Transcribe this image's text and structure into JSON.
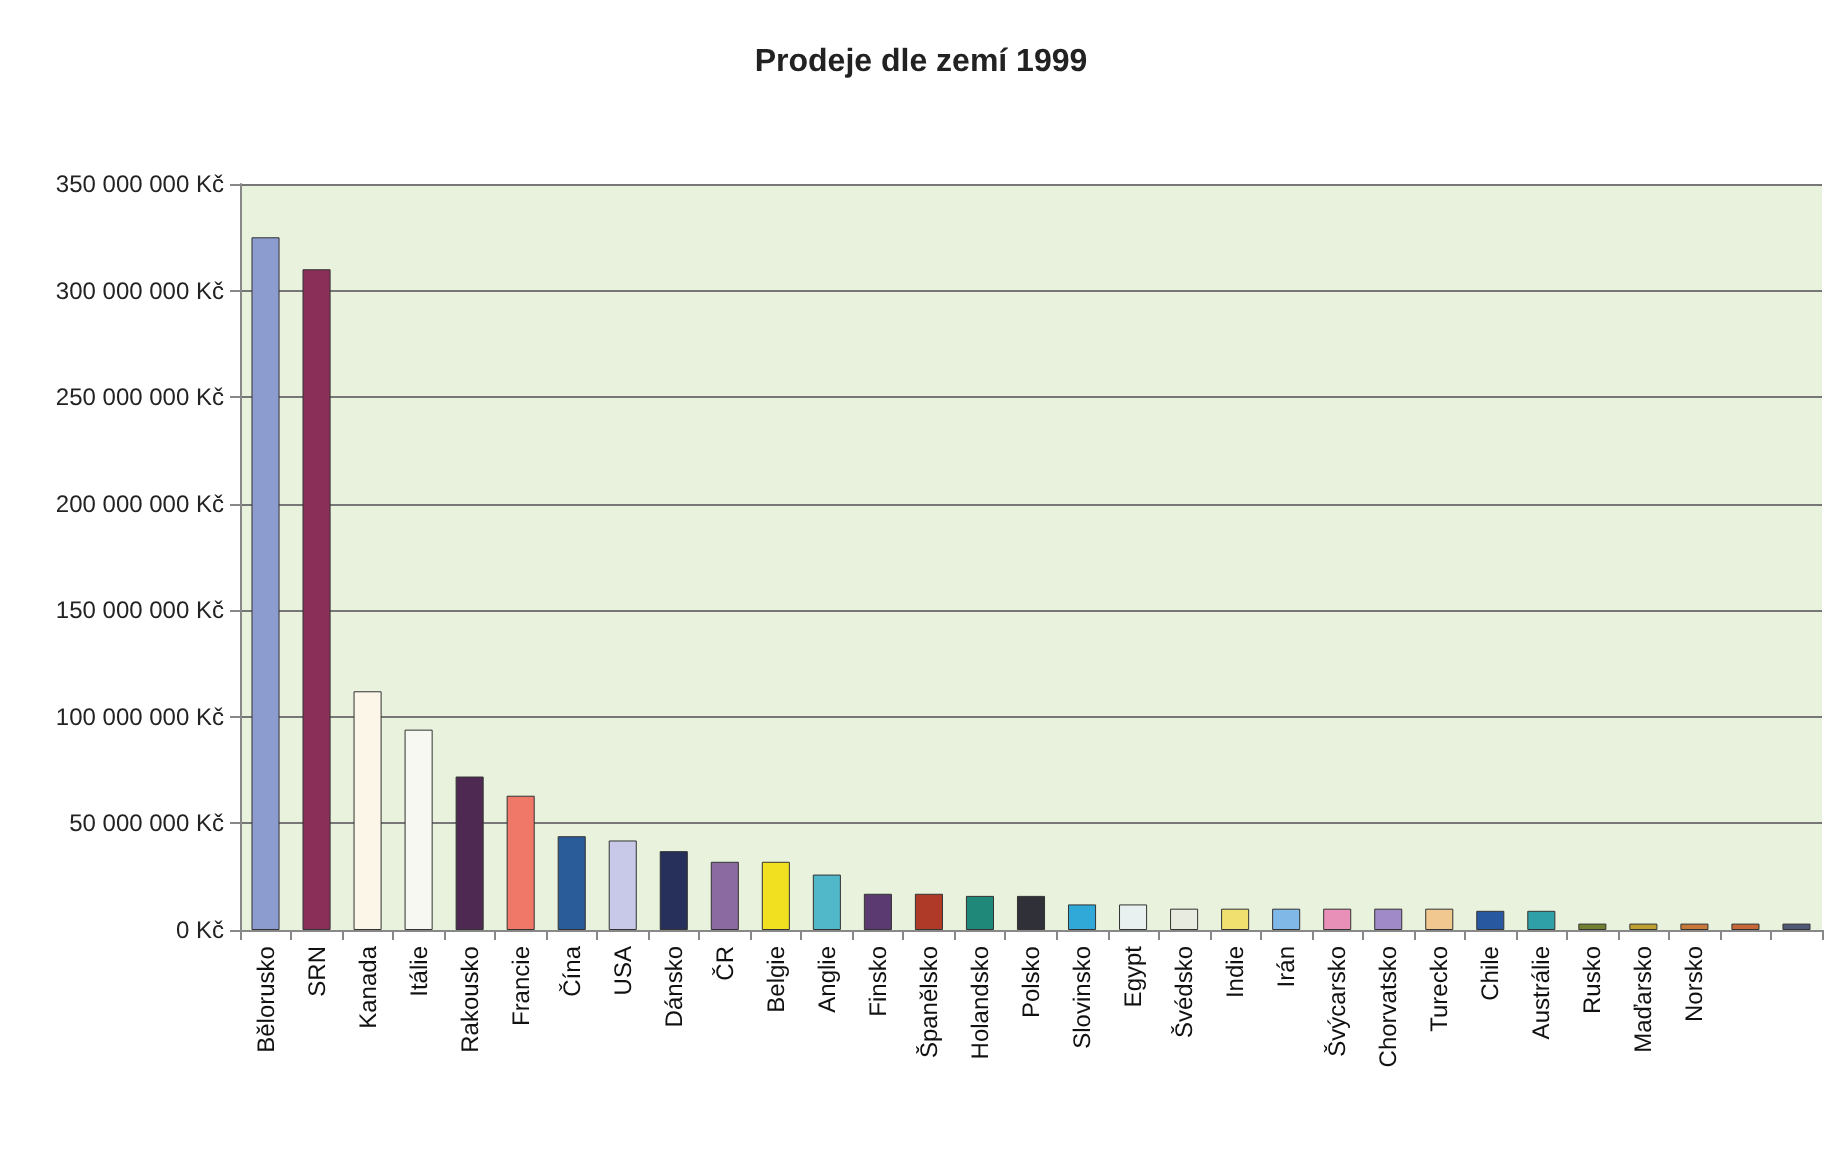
{
  "chart_data": {
    "type": "bar",
    "title": "Prodeje dle zemí 1999",
    "categories": [
      "Bělorusko",
      "SRN",
      "Kanada",
      "Itálie",
      "Rakousko",
      "Francie",
      "Čína",
      "USA",
      "Dánsko",
      "ČR",
      "Belgie",
      "Anglie",
      "Finsko",
      "Španělsko",
      "Holandsko",
      "Polsko",
      "Slovinsko",
      "Egypt",
      "Švédsko",
      "Indie",
      "Irán",
      "Švýcarsko",
      "Chorvatsko",
      "Turecko",
      "Chile",
      "Austrálie",
      "Rusko",
      "Maďarsko",
      "Norsko",
      null,
      null
    ],
    "values": [
      325000000,
      310000000,
      112000000,
      94000000,
      72000000,
      63000000,
      44000000,
      42000000,
      37000000,
      32000000,
      32000000,
      26000000,
      17000000,
      17000000,
      16000000,
      16000000,
      12000000,
      12000000,
      10000000,
      10000000,
      10000000,
      10000000,
      10000000,
      10000000,
      9000000,
      9000000,
      3000000,
      3000000,
      3000000,
      3000000,
      3000000
    ],
    "colors": [
      "#8c9ccf",
      "#8a3058",
      "#fbf6e8",
      "#f8f8f2",
      "#4e2a52",
      "#f07868",
      "#2a5c9a",
      "#c8c8e8",
      "#26305a",
      "#8a6aa0",
      "#f0e020",
      "#50b8c8",
      "#5a3a70",
      "#b03a28",
      "#208878",
      "#303038",
      "#30a8d8",
      "#e8f0f0",
      "#e8ece0",
      "#f0e070",
      "#80b8e8",
      "#e890b8",
      "#a08ac8",
      "#f0c890",
      "#2858a0",
      "#30a0a8",
      "#708030",
      "#c0a030",
      "#c87838",
      "#c86838",
      "#505878"
    ],
    "ylim": [
      0,
      350000000
    ],
    "yticks": [
      {
        "value": 0,
        "label": "0 Kč"
      },
      {
        "value": 50000000,
        "label": "50 000 000 Kč"
      },
      {
        "value": 100000000,
        "label": "100 000 000 Kč"
      },
      {
        "value": 150000000,
        "label": "150 000 000 Kč"
      },
      {
        "value": 200000000,
        "label": "200 000 000 Kč"
      },
      {
        "value": 250000000,
        "label": "250 000 000 Kč"
      },
      {
        "value": 300000000,
        "label": "300 000 000 Kč"
      },
      {
        "value": 350000000,
        "label": "350 000 000 Kč"
      }
    ],
    "grid": "y"
  }
}
